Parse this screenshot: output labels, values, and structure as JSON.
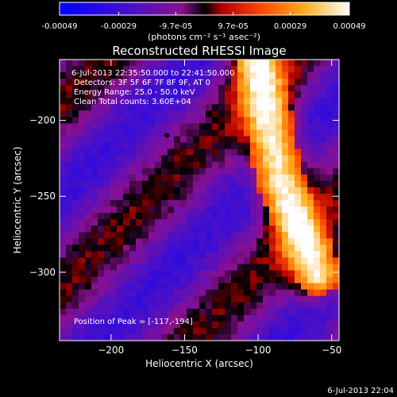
{
  "colorbar": {
    "ticks": [
      "-0.00049",
      "-0.00029",
      "-9.7e-05",
      "9.7e-05",
      "0.00029",
      "0.00049"
    ],
    "tick_values": [
      -0.00049,
      -0.00029,
      -9.7e-05,
      9.7e-05,
      0.00029,
      0.00049
    ],
    "range": [
      -0.00049,
      0.00049
    ],
    "unit": "(photons cm⁻² s⁻¹ asec⁻²)",
    "colors": [
      "#0000ff",
      "#7a10a8",
      "#cc1010",
      "#ff6000",
      "#ffd24a",
      "#ffffff"
    ]
  },
  "chart_data": {
    "type": "heatmap",
    "title": "Reconstructed RHESSI Image",
    "xlabel": "Heliocentric X (arcsec)",
    "ylabel": "Heliocentric Y (arcsec)",
    "xlim": [
      -235,
      -45
    ],
    "ylim": [
      -345,
      -160
    ],
    "x_ticks": [
      -200,
      -150,
      -100,
      -50
    ],
    "y_ticks": [
      -200,
      -250,
      -300
    ],
    "peak": {
      "x": -117,
      "y": -194
    },
    "ridge": [
      {
        "x": -100,
        "y": -165
      },
      {
        "x": -85,
        "y": -240
      },
      {
        "x": -60,
        "y": -300
      }
    ],
    "annotations": {
      "time": "6-Jul-2013 22:35:50.000 to 22:41:50.000",
      "detectors": "Detectors: 3F 5F 6F 7F 8F 9F, AT 0",
      "energy": "Energy Range: 25.0 - 50.0 keV",
      "method": "Clean    Total counts: 3.60E+04",
      "peak_label": "Position of Peak = [-117,-194]"
    }
  },
  "footer": {
    "timestamp": "6-Jul-2013 22:04"
  }
}
